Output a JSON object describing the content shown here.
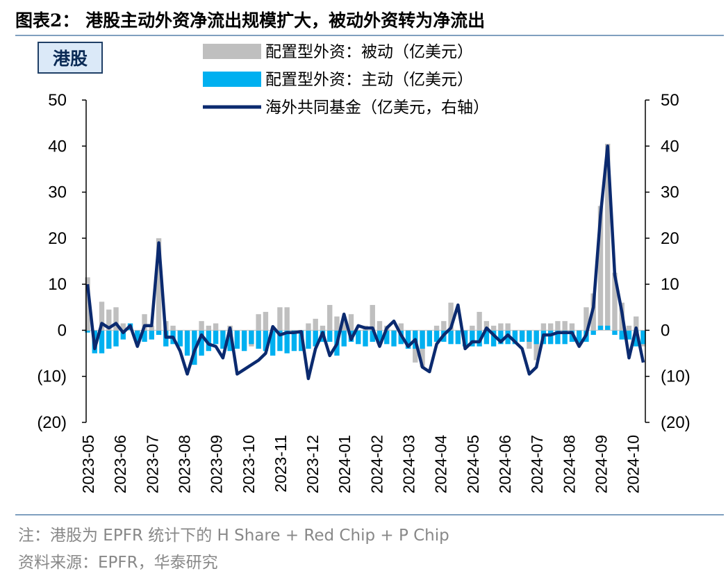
{
  "header": {
    "title": "图表2：  港股主动外资净流出规模扩大，被动外资转为净流出",
    "badge": "港股"
  },
  "footer": {
    "note": "注：港股为 EPFR 统计下的 H Share + Red Chip + P Chip",
    "source": "资料来源：EPFR，华泰研究"
  },
  "colors": {
    "passive": "#bfbfbf",
    "active": "#00b0f0",
    "fund": "#0b2a6f",
    "rule": "#7f9fbf"
  },
  "chart_data": {
    "type": "bar+line",
    "legend": [
      {
        "name": "配置型外资：被动（亿美元）",
        "kind": "bar",
        "color": "#bfbfbf"
      },
      {
        "name": "配置型外资：主动（亿美元）",
        "kind": "bar",
        "color": "#00b0f0"
      },
      {
        "name": "海外共同基金（亿美元，右轴）",
        "kind": "line",
        "color": "#0b2a6f"
      }
    ],
    "y_left": {
      "min": -20,
      "max": 50,
      "ticks": [
        "50",
        "40",
        "30",
        "20",
        "10",
        "0",
        "(10)",
        "(20)"
      ],
      "tick_values": [
        50,
        40,
        30,
        20,
        10,
        0,
        -10,
        -20
      ]
    },
    "y_right": {
      "min": -20,
      "max": 50,
      "ticks": [
        "50",
        "40",
        "30",
        "20",
        "10",
        "0",
        "(10)",
        "(20)"
      ],
      "tick_values": [
        50,
        40,
        30,
        20,
        10,
        0,
        -10,
        -20
      ]
    },
    "x_labels": [
      "2023-05",
      "2023-06",
      "2023-07",
      "2023-08",
      "2023-09",
      "2023-10",
      "2023-11",
      "2023-12",
      "2024-01",
      "2024-02",
      "2024-03",
      "2024-04",
      "2024-05",
      "2024-06",
      "2024-07",
      "2024-08",
      "2024-09",
      "2024-10"
    ],
    "weeks_per_month": 4.5,
    "series": [
      {
        "name": "配置型外资：被动（亿美元）",
        "values": [
          11.5,
          -4.5,
          6.2,
          4.5,
          5.0,
          1.5,
          0.8,
          -0.8,
          3.5,
          1.0,
          20.0,
          2.0,
          1.0,
          -1.0,
          -2.0,
          -1.0,
          2.0,
          1.0,
          1.5,
          -0.5,
          1.0,
          -3.0,
          -4.0,
          -3.5,
          3.5,
          4.0,
          -1.0,
          5.0,
          5.0,
          -1.0,
          -0.5,
          1.5,
          2.5,
          1.0,
          5.5,
          3.0,
          2.0,
          3.5,
          -1.0,
          1.0,
          5.5,
          2.0,
          1.0,
          -0.5,
          1.5,
          -1.0,
          -7.0,
          -8.0,
          -1.0,
          1.0,
          2.0,
          6.0,
          -1.0,
          -0.5,
          1.0,
          4.0,
          2.0,
          1.0,
          1.5,
          1.5,
          -1.0,
          -1.5,
          -4.0,
          -6.5,
          1.5,
          1.5,
          2.0,
          2.0,
          1.5,
          -1.0,
          5.0,
          8.0,
          27.0,
          40.5,
          12.5,
          6.0,
          1.0,
          3.0,
          -3.5
        ]
      },
      {
        "name": "配置型外资：主动（亿美元）",
        "values": [
          -0.5,
          -5.0,
          -5.0,
          -4.0,
          -3.5,
          -2.0,
          1.5,
          -2.5,
          -2.5,
          -2.0,
          -1.0,
          -3.5,
          -3.0,
          -3.5,
          -5.5,
          -7.5,
          -5.5,
          -4.5,
          -3.0,
          -4.0,
          -4.5,
          -4.0,
          -4.5,
          -3.0,
          -4.0,
          -4.5,
          -5.5,
          -4.5,
          -5.0,
          -4.5,
          -4.5,
          -4.0,
          -3.5,
          -2.5,
          -2.5,
          -5.5,
          -3.5,
          -2.5,
          -3.0,
          -3.5,
          -2.5,
          -2.5,
          -3.0,
          -3.5,
          -3.0,
          -4.0,
          -4.0,
          -4.0,
          -3.5,
          -2.5,
          -2.5,
          -3.0,
          -3.0,
          -3.5,
          -3.5,
          -3.5,
          -3.0,
          -3.5,
          -3.0,
          -3.0,
          -3.0,
          -2.5,
          -2.5,
          -3.0,
          -3.0,
          -3.0,
          -3.0,
          -3.0,
          -2.5,
          -3.0,
          -2.5,
          -1.0,
          1.0,
          1.0,
          -1.0,
          -2.0,
          -2.0,
          -3.5,
          -3.0
        ]
      },
      {
        "name": "海外共同基金（亿美元，右轴）",
        "values": [
          10.0,
          -4.0,
          1.5,
          0.5,
          1.5,
          -0.5,
          1.0,
          -3.5,
          1.0,
          1.0,
          19.0,
          -1.5,
          -1.5,
          -4.5,
          -9.5,
          -4.5,
          -1.0,
          -3.0,
          -3.5,
          -6.0,
          0.5,
          -9.5,
          -8.5,
          -7.5,
          -6.5,
          -5.0,
          0.8,
          -1.0,
          -0.5,
          -0.5,
          -0.3,
          -10.5,
          -4.0,
          -0.5,
          -5.5,
          -3.0,
          3.5,
          -2.0,
          1.0,
          0.5,
          0.5,
          -3.5,
          0.5,
          2.0,
          -1.0,
          -3.5,
          -2.0,
          -8.0,
          -9.0,
          -3.0,
          -1.0,
          0.5,
          5.5,
          -4.0,
          -2.5,
          -2.5,
          0.5,
          -1.0,
          -2.5,
          -1.0,
          -2.5,
          -4.0,
          -9.5,
          -8.0,
          -1.0,
          -1.0,
          -0.5,
          -0.5,
          -0.5,
          -3.5,
          -1.0,
          5.0,
          25.0,
          40.0,
          12.0,
          4.0,
          -6.0,
          0.5,
          -7.0
        ]
      }
    ]
  }
}
